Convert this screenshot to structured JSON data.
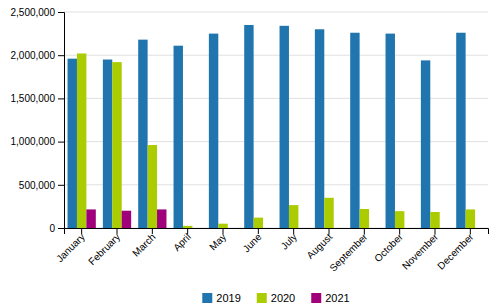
{
  "chart_data": {
    "type": "bar",
    "categories": [
      "January",
      "February",
      "March",
      "April",
      "May",
      "June",
      "July",
      "August",
      "September",
      "October",
      "November",
      "December"
    ],
    "series": [
      {
        "name": "2019",
        "color": "#2175AE",
        "values": [
          1960000,
          1950000,
          2180000,
          2110000,
          2250000,
          2350000,
          2340000,
          2300000,
          2260000,
          2250000,
          1940000,
          2260000
        ]
      },
      {
        "name": "2020",
        "color": "#AACC00",
        "values": [
          2020000,
          1920000,
          960000,
          25000,
          50000,
          120000,
          265000,
          350000,
          220000,
          195000,
          185000,
          215000
        ]
      },
      {
        "name": "2021",
        "color": "#A0007A",
        "values": [
          215000,
          200000,
          215000,
          0,
          0,
          0,
          0,
          0,
          0,
          0,
          0,
          0
        ]
      }
    ],
    "ylim": [
      0,
      2500000
    ],
    "yticks": [
      0,
      {
        "value": 500000,
        "label": "500,000"
      },
      {
        "value": 1000000,
        "label": "1,000,000"
      },
      {
        "value": 1500000,
        "label": "1,500,000"
      },
      {
        "value": 2000000,
        "label": "2,000,000"
      },
      {
        "value": 2500000,
        "label": "2,500,000"
      }
    ],
    "grid": true,
    "legend": "bottom"
  }
}
